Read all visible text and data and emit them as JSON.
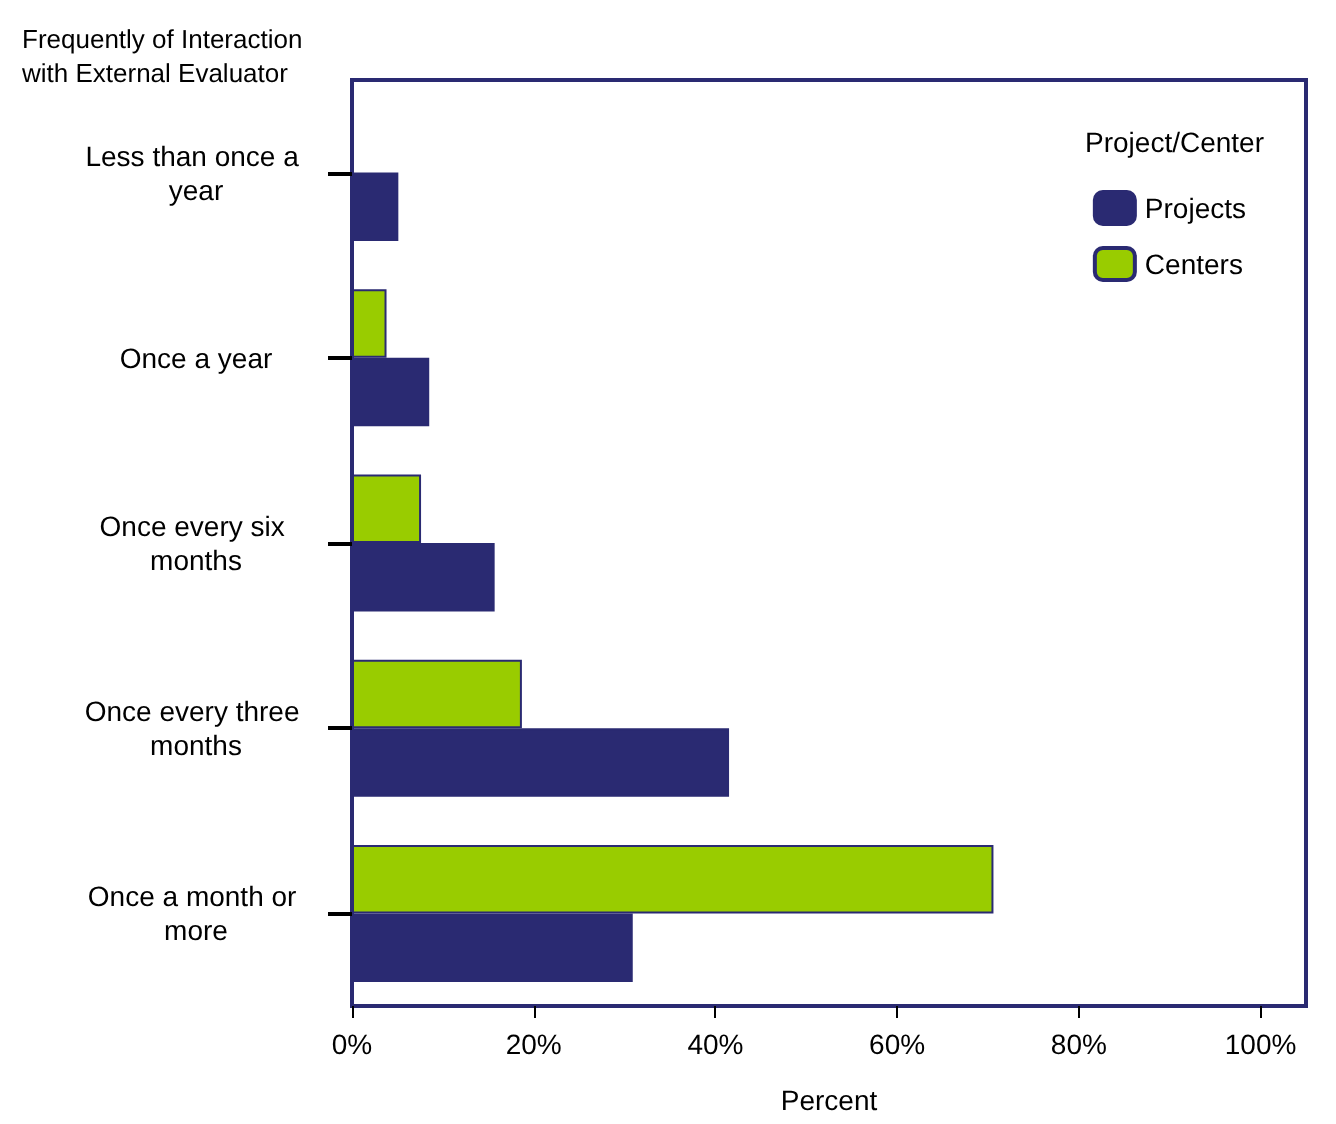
{
  "chart_data": {
    "type": "bar",
    "orientation": "horizontal",
    "ylabel": "Frequently of Interaction\nwith External Evaluator",
    "xlabel": "Percent",
    "legend_title": "Project/Center",
    "categories": [
      "Less than once a year",
      "Once a year",
      "Once every six months",
      "Once every three months",
      "Once a month or more"
    ],
    "series": [
      {
        "name": "Projects",
        "color": "#2a2a72",
        "values": [
          5.1,
          8.5,
          15.7,
          41.5,
          30.9
        ]
      },
      {
        "name": "Centers",
        "color": "#99cc00",
        "values": [
          null,
          3.8,
          7.6,
          18.7,
          70.6
        ]
      }
    ],
    "xlim": [
      0,
      105
    ],
    "xticks": [
      {
        "value": 0,
        "label": "0%"
      },
      {
        "value": 20,
        "label": "20%"
      },
      {
        "value": 40,
        "label": "40%"
      },
      {
        "value": 60,
        "label": "60%"
      },
      {
        "value": 80,
        "label": "80%"
      },
      {
        "value": 100,
        "label": "100%"
      }
    ],
    "grid": false,
    "legend": "top right"
  }
}
